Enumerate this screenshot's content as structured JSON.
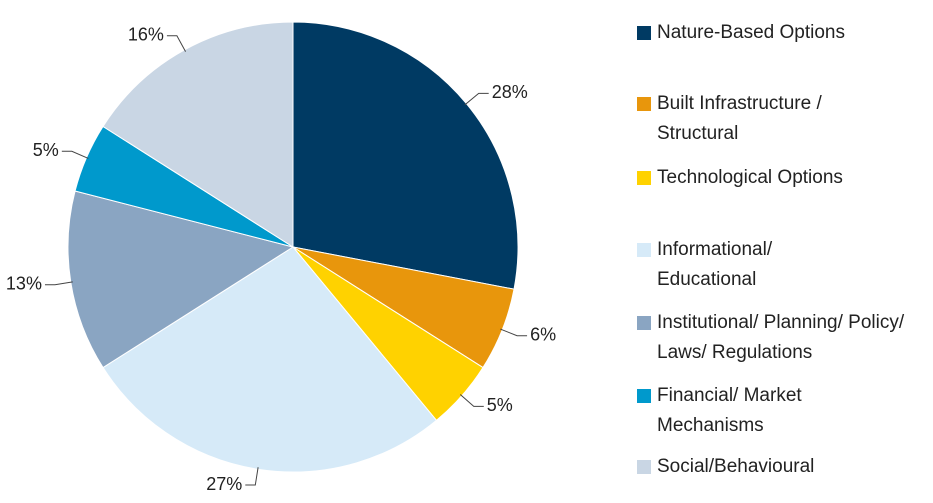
{
  "chart_data": {
    "type": "pie",
    "categories": [
      "Nature-Based Options",
      "Built Infrastructure / Structural",
      "Technological Options",
      "Informational/ Educational",
      "Institutional/ Planning/ Policy/ Laws/ Regulations",
      "Financial/ Market Mechanisms",
      "Social/Behavioural"
    ],
    "values": [
      28,
      6,
      5,
      27,
      13,
      5,
      16
    ],
    "value_labels": [
      "28%",
      "6%",
      "5%",
      "27%",
      "13%",
      "5%",
      "16%"
    ],
    "colors": [
      "#003a63",
      "#e8960c",
      "#ffd200",
      "#d6eaf8",
      "#8aa5c2",
      "#0099cc",
      "#c9d6e4"
    ],
    "legend": "right"
  }
}
